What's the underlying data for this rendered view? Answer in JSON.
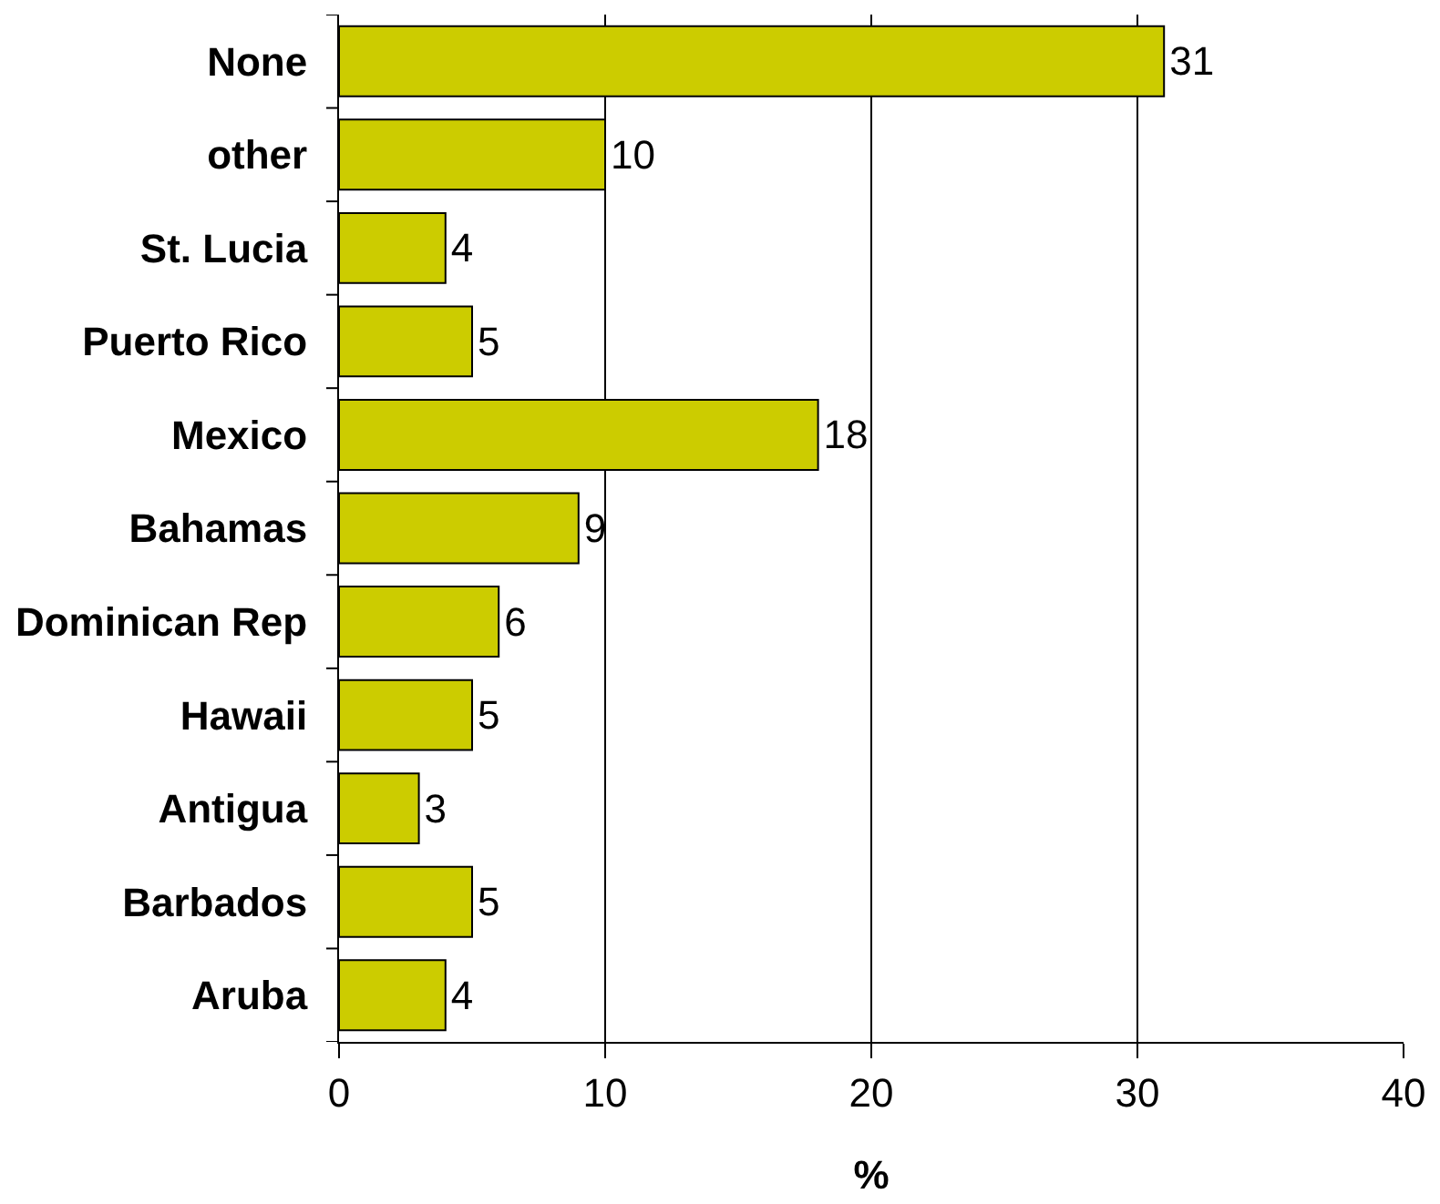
{
  "chart_data": {
    "type": "bar",
    "orientation": "horizontal",
    "xlabel": "%",
    "categories": [
      "None",
      "other",
      "St. Lucia",
      "Puerto Rico",
      "Mexico",
      "Bahamas",
      "Dominican Rep",
      "Hawaii",
      "Antigua",
      "Barbados",
      "Aruba"
    ],
    "values": [
      31,
      10,
      4,
      5,
      18,
      9,
      6,
      5,
      3,
      5,
      4
    ],
    "color": "#cccc00",
    "xlim": [
      0,
      40
    ],
    "xticks": [
      0,
      10,
      20,
      30,
      40
    ],
    "grid": "x",
    "data_labels": true,
    "legend": false
  }
}
